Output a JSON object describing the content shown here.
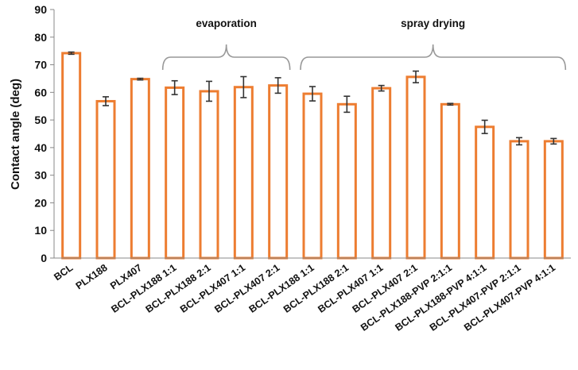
{
  "chart_data": {
    "type": "bar",
    "title": "",
    "xlabel": "",
    "ylabel": "Contact angle (deg)",
    "ylim": [
      0,
      90
    ],
    "yticks": [
      0,
      10,
      20,
      30,
      40,
      50,
      60,
      70,
      80,
      90
    ],
    "grid": false,
    "categories": [
      "BCL",
      "PLX188",
      "PLX407",
      "BCL-PLX188 1:1",
      "BCL-PLX188 2:1",
      "BCL-PLX407 1:1",
      "BCL-PLX407 2:1",
      "BCL-PLX188 1:1",
      "BCL-PLX188 2:1",
      "BCL-PLX407 1:1",
      "BCL-PLX407 2:1",
      "BCL-PLX188-PVP 2:1:1",
      "BCL-PLX188-PVP 4:1:1",
      "BCL-PLX407-PVP 2:1:1",
      "BCL-PLX407-PVP 4:1:1"
    ],
    "values": [
      74.2,
      56.8,
      64.8,
      61.7,
      60.4,
      61.9,
      62.5,
      59.5,
      55.7,
      61.5,
      65.6,
      55.7,
      47.5,
      42.3,
      42.3
    ],
    "errors": [
      0.4,
      1.6,
      0.3,
      2.5,
      3.6,
      3.8,
      2.8,
      2.6,
      2.9,
      1.0,
      2.1,
      0.3,
      2.4,
      1.3,
      1.0
    ],
    "bar_fill": "#ffffff",
    "bar_stroke": "#ed7d31",
    "error_color": "#333333",
    "groups": [
      {
        "label": "evaporation",
        "start_index": 3,
        "end_index": 6
      },
      {
        "label": "spray drying",
        "start_index": 7,
        "end_index": 14
      }
    ]
  }
}
